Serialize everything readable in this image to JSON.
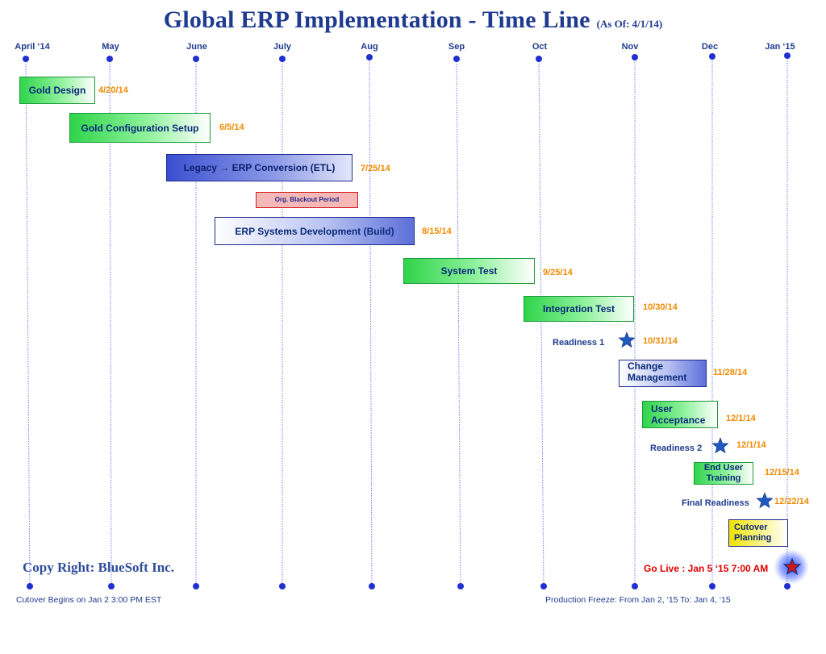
{
  "title": {
    "main": "Global ERP Implementation - Time Line",
    "as_of": "(As Of: 4/1/14)"
  },
  "months": [
    "April ‘14",
    "May",
    "June",
    "July",
    "Aug",
    "Sep",
    "Oct",
    "Nov",
    "Dec",
    "Jan ‘15"
  ],
  "tasks": {
    "gold_design": {
      "label": "Gold Design",
      "end": "4/20/14"
    },
    "gold_config": {
      "label": "Gold Configuration  Setup",
      "end": "6/5/14"
    },
    "legacy_conversion": {
      "label_prefix": "Legacy",
      "arrow": "→",
      "label_suffix": "ERP Conversion (ETL)",
      "end": "7/25/14"
    },
    "blackout": {
      "label": "Org. Blackout Period"
    },
    "erp_dev": {
      "label": "ERP Systems Development (Build)",
      "end": "8/15/14"
    },
    "system_test": {
      "label": "System  Test",
      "end": "9/25/14"
    },
    "integration_test": {
      "label": "Integration Test",
      "end": "10/30/14"
    },
    "change_mgmt": {
      "line1": "Change",
      "line2": "Management",
      "end": "11/28/14"
    },
    "user_acceptance": {
      "line1": "User",
      "line2": "Acceptance",
      "end": "12/1/14"
    },
    "end_user_training": {
      "line1": "End User",
      "line2": "Training",
      "end": "12/15/14"
    },
    "cutover_planning": {
      "line1": "Cutover",
      "line2": "Planning"
    }
  },
  "milestones": {
    "readiness1": {
      "label": "Readiness 1",
      "date": "10/31/14"
    },
    "readiness2": {
      "label": "Readiness 2",
      "date": "12/1/14"
    },
    "final_readiness": {
      "label": "Final Readiness",
      "date": "12/22/14"
    },
    "go_live": {
      "label": "Go Live : Jan 5 ‘15 7:00 AM"
    }
  },
  "copyright": "Copy Right: BlueSoft Inc.",
  "footer": {
    "cutover_begins": "Cutover Begins on Jan 2 3:00 PM  EST",
    "production_freeze": "Production Freeze: From   Jan 2, ‘15 To: Jan 4, ‘15"
  },
  "colors": {
    "title": "#1f3b8f",
    "date": "#f08a00",
    "go_live": "#e00000",
    "grid_line": "#6f7fe8",
    "star": "#1f5bbf"
  }
}
